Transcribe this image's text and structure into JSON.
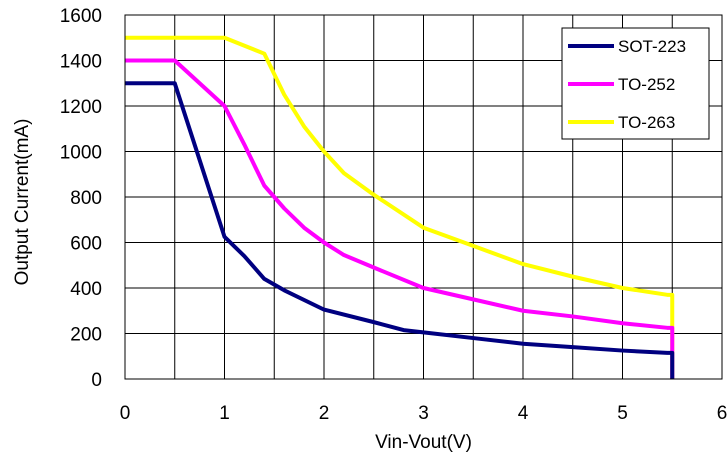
{
  "chart_data": {
    "type": "line",
    "xlabel": "Vin-Vout(V)",
    "ylabel": "Output Current(mA)",
    "xlim": [
      0,
      6
    ],
    "ylim": [
      0,
      1600
    ],
    "xticks": [
      "0",
      "1",
      "2",
      "3",
      "4",
      "5",
      "6"
    ],
    "yticks": [
      "0",
      "200",
      "400",
      "600",
      "800",
      "1000",
      "1200",
      "1400",
      "1600"
    ],
    "grid": "on",
    "legend_position": "top-right",
    "series": [
      {
        "name": "SOT-223",
        "color": "#000080",
        "x": [
          0,
          0.5,
          1.0,
          1.2,
          1.4,
          1.6,
          2.0,
          2.5,
          2.8,
          3.0,
          3.5,
          4.0,
          4.5,
          5.0,
          5.45,
          5.5,
          5.5
        ],
        "y": [
          1300,
          1300,
          625,
          540,
          440,
          390,
          305,
          250,
          215,
          205,
          180,
          155,
          140,
          125,
          115,
          115,
          0
        ]
      },
      {
        "name": "TO-252",
        "color": "#FF00FF",
        "x": [
          0,
          0.5,
          1.0,
          1.2,
          1.4,
          1.6,
          1.8,
          2.0,
          2.2,
          2.5,
          3.0,
          3.5,
          4.0,
          4.5,
          5.0,
          5.45,
          5.5,
          5.5
        ],
        "y": [
          1400,
          1400,
          1200,
          1030,
          850,
          750,
          665,
          600,
          545,
          490,
          400,
          350,
          300,
          275,
          245,
          225,
          225,
          0
        ]
      },
      {
        "name": "TO-263",
        "color": "#FFFF00",
        "x": [
          0,
          0.5,
          1.0,
          1.4,
          1.6,
          1.8,
          2.0,
          2.2,
          2.5,
          3.0,
          3.5,
          4.0,
          4.5,
          5.0,
          5.45,
          5.5,
          5.5
        ],
        "y": [
          1500,
          1500,
          1500,
          1430,
          1250,
          1110,
          1000,
          905,
          810,
          665,
          585,
          505,
          450,
          400,
          370,
          370,
          0
        ]
      }
    ]
  }
}
